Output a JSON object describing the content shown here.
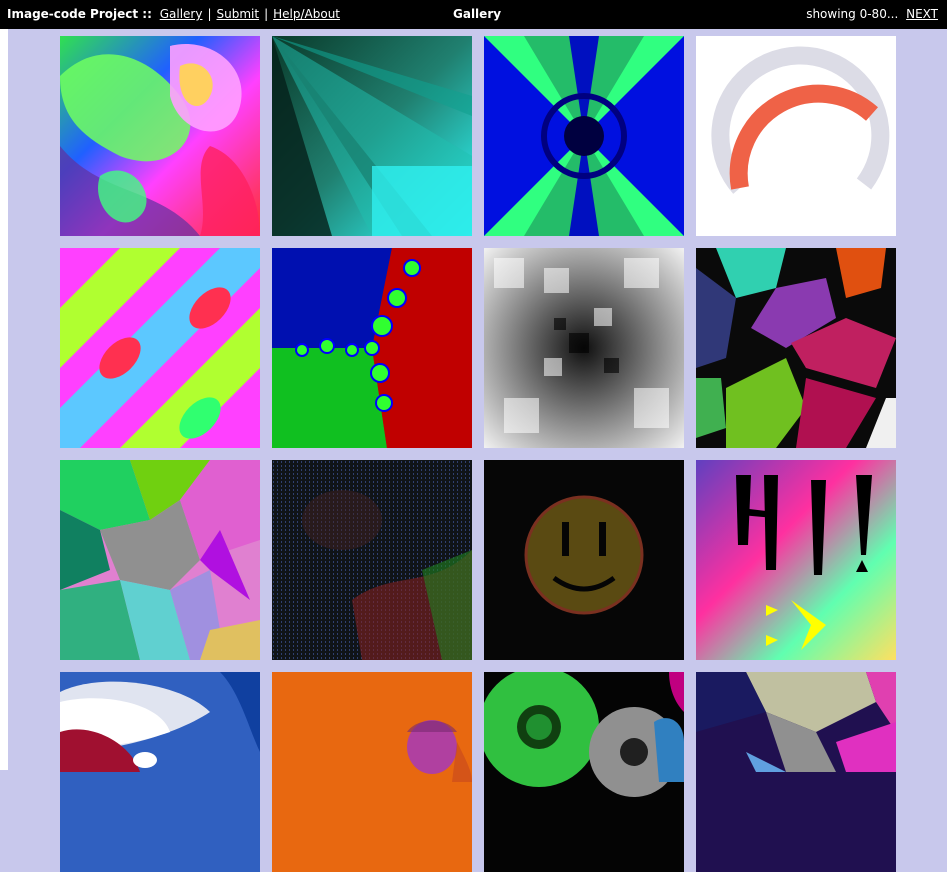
{
  "header": {
    "brand": "Image-code Project ::",
    "nav": [
      "Gallery",
      "Submit",
      "Help/About"
    ],
    "title": "Gallery",
    "showing": "showing 0-80...",
    "next": "NEXT"
  },
  "gallery": {
    "tiles": [
      {
        "icon": "swirl-fractal-thumbnail"
      },
      {
        "icon": "teal-rays-thumbnail"
      },
      {
        "icon": "blue-green-hourglass-thumbnail"
      },
      {
        "icon": "arc-gauge-thumbnail"
      },
      {
        "icon": "diagonal-diamond-pattern-thumbnail"
      },
      {
        "icon": "newton-fractal-thumbnail"
      },
      {
        "icon": "grayscale-tunnel-thumbnail"
      },
      {
        "icon": "voronoi-dark-thumbnail"
      },
      {
        "icon": "voronoi-pastel-thumbnail"
      },
      {
        "icon": "dotted-red-green-thumbnail"
      },
      {
        "icon": "smiley-face-thumbnail"
      },
      {
        "icon": "hi-gradient-thumbnail"
      },
      {
        "icon": "blue-curves-thumbnail"
      },
      {
        "icon": "orange-blob-thumbnail"
      },
      {
        "icon": "green-circles-thumbnail"
      },
      {
        "icon": "colored-shapes-thumbnail"
      }
    ],
    "hi_text": "H!"
  },
  "colors": {
    "page_bg": "#c8c8ec",
    "header_bg": "#000000",
    "gauge_arc": "#ef6247",
    "gauge_track": "#dcdce6"
  }
}
